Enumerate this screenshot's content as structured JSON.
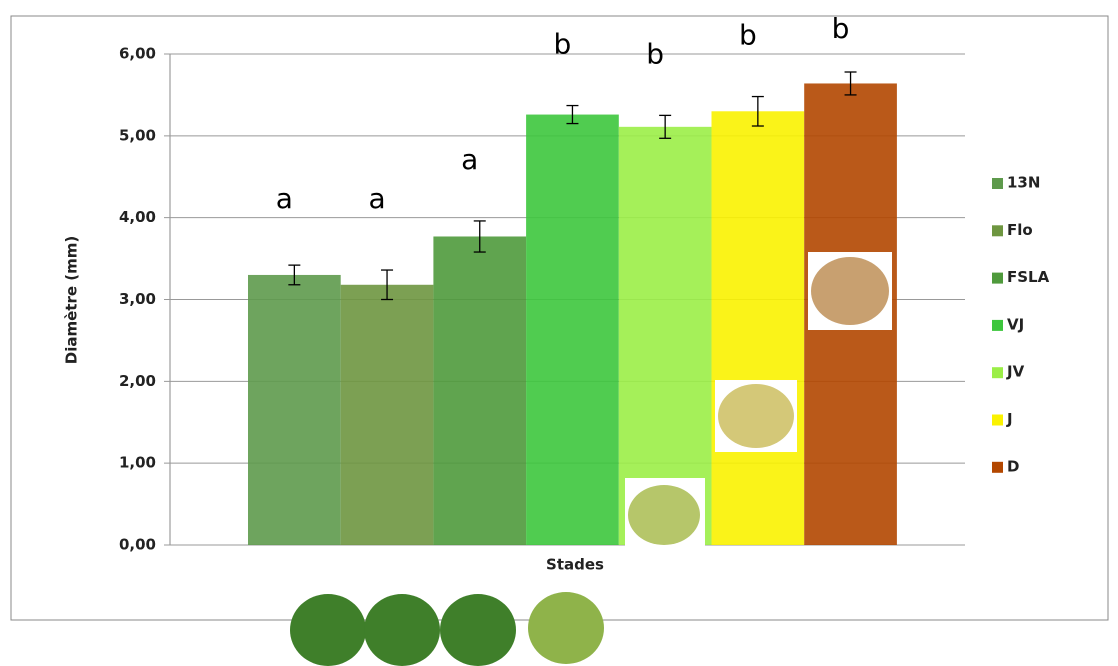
{
  "chart_data": {
    "type": "bar",
    "x_label": "Stades",
    "y_label": "Diamètre (mm)",
    "ylim": [
      0,
      6
    ],
    "yticks": [
      {
        "value": 0,
        "label": "0,00"
      },
      {
        "value": 1,
        "label": "1,00"
      },
      {
        "value": 2,
        "label": "2,00"
      },
      {
        "value": 3,
        "label": "3,00"
      },
      {
        "value": 4,
        "label": "4,00"
      },
      {
        "value": 5,
        "label": "5,00"
      },
      {
        "value": 6,
        "label": "6,00"
      }
    ],
    "grid": true,
    "legend": "right",
    "series": [
      {
        "name": "13N",
        "color": "#5e9a4c",
        "values": [
          3.3
        ],
        "errors": [
          0.12
        ],
        "annotations": [
          "a"
        ]
      },
      {
        "name": "Flo",
        "color": "#6e9640",
        "values": [
          3.18
        ],
        "errors": [
          0.18
        ],
        "annotations": [
          "a"
        ]
      },
      {
        "name": "FSLA",
        "color": "#4f9a3c",
        "values": [
          3.77
        ],
        "errors": [
          0.19
        ],
        "annotations": [
          "a"
        ]
      },
      {
        "name": "VJ",
        "color": "#3dc63d",
        "values": [
          5.26
        ],
        "errors": [
          0.11
        ],
        "annotations": [
          "b"
        ]
      },
      {
        "name": "JV",
        "color": "#9bee47",
        "values": [
          5.11
        ],
        "errors": [
          0.14
        ],
        "annotations": [
          "b"
        ]
      },
      {
        "name": "J",
        "color": "#faf200",
        "values": [
          5.3
        ],
        "errors": [
          0.18
        ],
        "annotations": [
          "b"
        ]
      },
      {
        "name": "D",
        "color": "#b34700",
        "values": [
          5.64
        ],
        "errors": [
          0.14
        ],
        "annotations": [
          "b"
        ]
      }
    ]
  }
}
